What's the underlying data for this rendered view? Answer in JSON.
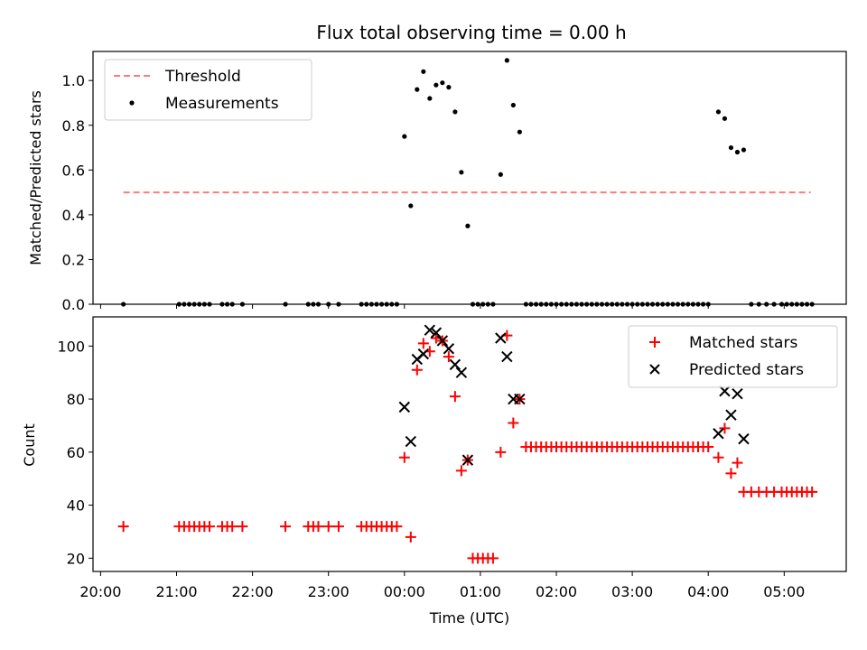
{
  "figure": {
    "title": "Flux total observing time = 0.00 h",
    "xlabel": "Time (UTC)",
    "xticks": [
      {
        "t": 0,
        "label": "20:00"
      },
      {
        "t": 60,
        "label": "21:00"
      },
      {
        "t": 120,
        "label": "22:00"
      },
      {
        "t": 180,
        "label": "23:00"
      },
      {
        "t": 240,
        "label": "00:00"
      },
      {
        "t": 300,
        "label": "01:00"
      },
      {
        "t": 360,
        "label": "02:00"
      },
      {
        "t": 420,
        "label": "03:00"
      },
      {
        "t": 480,
        "label": "04:00"
      },
      {
        "t": 540,
        "label": "05:00"
      }
    ]
  },
  "chart_data": [
    {
      "type": "scatter",
      "ylabel": "Matched/Predicted stars",
      "xlim": [
        -6,
        589
      ],
      "ylim": [
        0,
        1.13
      ],
      "yticks": [
        0.0,
        0.2,
        0.4,
        0.6,
        0.8,
        1.0
      ],
      "ytick_labels": [
        "0.0",
        "0.2",
        "0.4",
        "0.6",
        "0.8",
        "1.0"
      ],
      "legend_position": "upper left",
      "threshold": {
        "name": "Threshold",
        "value": 0.5,
        "x_range": [
          18,
          561
        ],
        "color": "#ff7b7b"
      },
      "series": [
        {
          "name": "Measurements",
          "color": "#000000",
          "points": [
            [
              18,
              0
            ],
            [
              62,
              0
            ],
            [
              66,
              0
            ],
            [
              70,
              0
            ],
            [
              74,
              0
            ],
            [
              78,
              0
            ],
            [
              82,
              0
            ],
            [
              86,
              0
            ],
            [
              96,
              0
            ],
            [
              100,
              0
            ],
            [
              104,
              0
            ],
            [
              112,
              0
            ],
            [
              146,
              0
            ],
            [
              164,
              0
            ],
            [
              168,
              0
            ],
            [
              172,
              0
            ],
            [
              180,
              0
            ],
            [
              188,
              0
            ],
            [
              206,
              0
            ],
            [
              210,
              0
            ],
            [
              214,
              0
            ],
            [
              218,
              0
            ],
            [
              222,
              0
            ],
            [
              226,
              0
            ],
            [
              230,
              0
            ],
            [
              234,
              0
            ],
            [
              240,
              0.75
            ],
            [
              245,
              0.44
            ],
            [
              250,
              0.96
            ],
            [
              255,
              1.04
            ],
            [
              260,
              0.92
            ],
            [
              265,
              0.98
            ],
            [
              270,
              0.99
            ],
            [
              275,
              0.97
            ],
            [
              280,
              0.86
            ],
            [
              285,
              0.59
            ],
            [
              290,
              0.35
            ],
            [
              294,
              0
            ],
            [
              298,
              0
            ],
            [
              302,
              0
            ],
            [
              306,
              0
            ],
            [
              310,
              0
            ],
            [
              316,
              0.58
            ],
            [
              321,
              1.09
            ],
            [
              326,
              0.89
            ],
            [
              331,
              0.77
            ],
            [
              336,
              0
            ],
            [
              340,
              0
            ],
            [
              344,
              0
            ],
            [
              348,
              0
            ],
            [
              352,
              0
            ],
            [
              356,
              0
            ],
            [
              360,
              0
            ],
            [
              364,
              0
            ],
            [
              368,
              0
            ],
            [
              372,
              0
            ],
            [
              376,
              0
            ],
            [
              380,
              0
            ],
            [
              384,
              0
            ],
            [
              388,
              0
            ],
            [
              392,
              0
            ],
            [
              396,
              0
            ],
            [
              400,
              0
            ],
            [
              404,
              0
            ],
            [
              408,
              0
            ],
            [
              412,
              0
            ],
            [
              416,
              0
            ],
            [
              420,
              0
            ],
            [
              424,
              0
            ],
            [
              428,
              0
            ],
            [
              432,
              0
            ],
            [
              436,
              0
            ],
            [
              440,
              0
            ],
            [
              444,
              0
            ],
            [
              448,
              0
            ],
            [
              452,
              0
            ],
            [
              456,
              0
            ],
            [
              460,
              0
            ],
            [
              464,
              0
            ],
            [
              468,
              0
            ],
            [
              472,
              0
            ],
            [
              476,
              0
            ],
            [
              480,
              0
            ],
            [
              488,
              0.86
            ],
            [
              493,
              0.83
            ],
            [
              498,
              0.7
            ],
            [
              503,
              0.68
            ],
            [
              508,
              0.69
            ],
            [
              514,
              0
            ],
            [
              520,
              0
            ],
            [
              526,
              0
            ],
            [
              532,
              0
            ],
            [
              538,
              0
            ],
            [
              542,
              0
            ],
            [
              546,
              0
            ],
            [
              550,
              0
            ],
            [
              554,
              0
            ],
            [
              558,
              0
            ],
            [
              562,
              0
            ]
          ]
        }
      ]
    },
    {
      "type": "scatter",
      "ylabel": "Count",
      "xlim": [
        -6,
        589
      ],
      "ylim": [
        15,
        111
      ],
      "yticks": [
        20,
        40,
        60,
        80,
        100
      ],
      "ytick_labels": [
        "20",
        "40",
        "60",
        "80",
        "100"
      ],
      "legend_position": "upper right",
      "series": [
        {
          "name": "Matched stars",
          "marker": "plus",
          "color": "#ff0000",
          "points": [
            [
              18,
              32
            ],
            [
              62,
              32
            ],
            [
              66,
              32
            ],
            [
              70,
              32
            ],
            [
              74,
              32
            ],
            [
              78,
              32
            ],
            [
              82,
              32
            ],
            [
              86,
              32
            ],
            [
              96,
              32
            ],
            [
              100,
              32
            ],
            [
              104,
              32
            ],
            [
              112,
              32
            ],
            [
              146,
              32
            ],
            [
              164,
              32
            ],
            [
              168,
              32
            ],
            [
              172,
              32
            ],
            [
              180,
              32
            ],
            [
              188,
              32
            ],
            [
              206,
              32
            ],
            [
              210,
              32
            ],
            [
              214,
              32
            ],
            [
              218,
              32
            ],
            [
              222,
              32
            ],
            [
              226,
              32
            ],
            [
              230,
              32
            ],
            [
              234,
              32
            ],
            [
              240,
              58
            ],
            [
              245,
              28
            ],
            [
              250,
              91
            ],
            [
              255,
              101
            ],
            [
              260,
              98
            ],
            [
              265,
              103
            ],
            [
              270,
              102
            ],
            [
              275,
              96
            ],
            [
              280,
              81
            ],
            [
              285,
              53
            ],
            [
              290,
              57
            ],
            [
              294,
              20
            ],
            [
              298,
              20
            ],
            [
              302,
              20
            ],
            [
              306,
              20
            ],
            [
              310,
              20
            ],
            [
              316,
              60
            ],
            [
              321,
              104
            ],
            [
              326,
              71
            ],
            [
              331,
              80
            ],
            [
              336,
              62
            ],
            [
              340,
              62
            ],
            [
              344,
              62
            ],
            [
              348,
              62
            ],
            [
              352,
              62
            ],
            [
              356,
              62
            ],
            [
              360,
              62
            ],
            [
              364,
              62
            ],
            [
              368,
              62
            ],
            [
              372,
              62
            ],
            [
              376,
              62
            ],
            [
              380,
              62
            ],
            [
              384,
              62
            ],
            [
              388,
              62
            ],
            [
              392,
              62
            ],
            [
              396,
              62
            ],
            [
              400,
              62
            ],
            [
              404,
              62
            ],
            [
              408,
              62
            ],
            [
              412,
              62
            ],
            [
              416,
              62
            ],
            [
              420,
              62
            ],
            [
              424,
              62
            ],
            [
              428,
              62
            ],
            [
              432,
              62
            ],
            [
              436,
              62
            ],
            [
              440,
              62
            ],
            [
              444,
              62
            ],
            [
              448,
              62
            ],
            [
              452,
              62
            ],
            [
              456,
              62
            ],
            [
              460,
              62
            ],
            [
              464,
              62
            ],
            [
              468,
              62
            ],
            [
              472,
              62
            ],
            [
              476,
              62
            ],
            [
              480,
              62
            ],
            [
              488,
              58
            ],
            [
              493,
              69
            ],
            [
              498,
              52
            ],
            [
              503,
              56
            ],
            [
              508,
              45
            ],
            [
              514,
              45
            ],
            [
              520,
              45
            ],
            [
              526,
              45
            ],
            [
              532,
              45
            ],
            [
              538,
              45
            ],
            [
              542,
              45
            ],
            [
              546,
              45
            ],
            [
              550,
              45
            ],
            [
              554,
              45
            ],
            [
              558,
              45
            ],
            [
              562,
              45
            ]
          ]
        },
        {
          "name": "Predicted stars",
          "marker": "x",
          "color": "#000000",
          "points": [
            [
              240,
              77
            ],
            [
              245,
              64
            ],
            [
              250,
              95
            ],
            [
              255,
              97
            ],
            [
              260,
              106
            ],
            [
              265,
              105
            ],
            [
              270,
              102
            ],
            [
              275,
              99
            ],
            [
              280,
              93
            ],
            [
              285,
              90
            ],
            [
              290,
              57
            ],
            [
              316,
              103
            ],
            [
              321,
              96
            ],
            [
              326,
              80
            ],
            [
              331,
              80
            ],
            [
              488,
              67
            ],
            [
              493,
              83
            ],
            [
              498,
              74
            ],
            [
              503,
              82
            ],
            [
              508,
              65
            ]
          ]
        }
      ]
    }
  ]
}
